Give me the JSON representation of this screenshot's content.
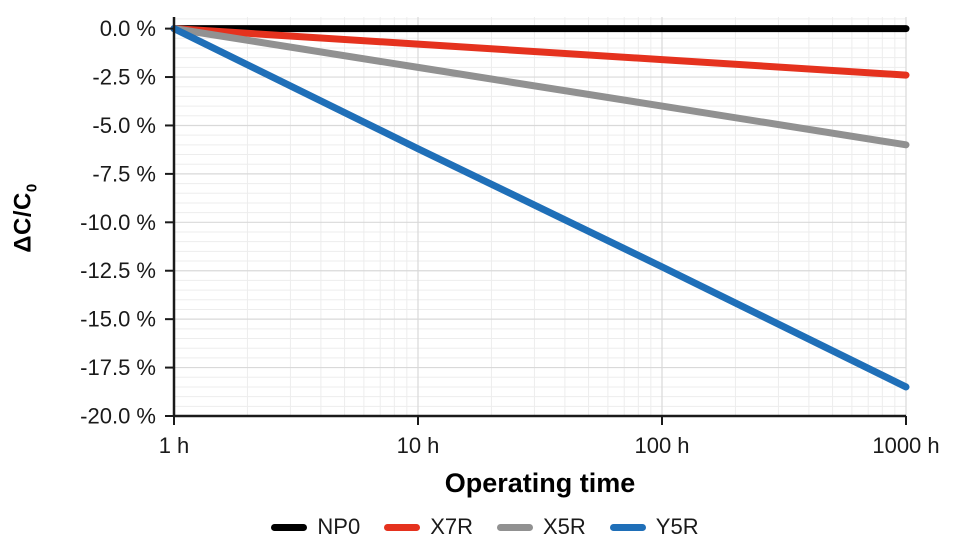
{
  "chart_data": {
    "type": "line",
    "x_scale": "log",
    "xlim": [
      1,
      1000
    ],
    "x": [
      1,
      10,
      100,
      1000
    ],
    "x_tick_labels": [
      "1 h",
      "10 h",
      "100 h",
      "1000 h"
    ],
    "xlabel": "Operating time",
    "ylabel_main": "ΔC/C",
    "ylabel_sub": "0",
    "ylim_top": 0.6,
    "ylim_bottom": -20,
    "y_ticks": [
      0,
      -2.5,
      -5,
      -7.5,
      -10,
      -12.5,
      -15,
      -17.5,
      -20
    ],
    "y_tick_labels": [
      "0.0 %",
      "-2.5 %",
      "-5.0 %",
      "-7.5 %",
      "-10.0 %",
      "-12.5 %",
      "-15.0 %",
      "-17.5 %",
      "-20.0 %"
    ],
    "grid": {
      "major": true,
      "minor": true,
      "minor_y_step": 0.5
    },
    "legend_position": "bottom",
    "series": [
      {
        "name": "NP0",
        "color": "#000000",
        "values": [
          0,
          0,
          0,
          0
        ]
      },
      {
        "name": "X7R",
        "color": "#e5321e",
        "values": [
          0,
          -0.8,
          -1.6,
          -2.4
        ]
      },
      {
        "name": "X5R",
        "color": "#919191",
        "values": [
          0,
          -2.0,
          -4.0,
          -6.0
        ]
      },
      {
        "name": "Y5R",
        "color": "#1f6fb8",
        "values": [
          0,
          -6.2,
          -12.3,
          -18.5
        ]
      }
    ]
  },
  "style": {
    "background": "#ffffff",
    "spine_color": "#1a1a1a",
    "text_color": "#1a1a1a",
    "grid_major_color": "#d9d9d9",
    "grid_minor_color": "#ededed"
  }
}
